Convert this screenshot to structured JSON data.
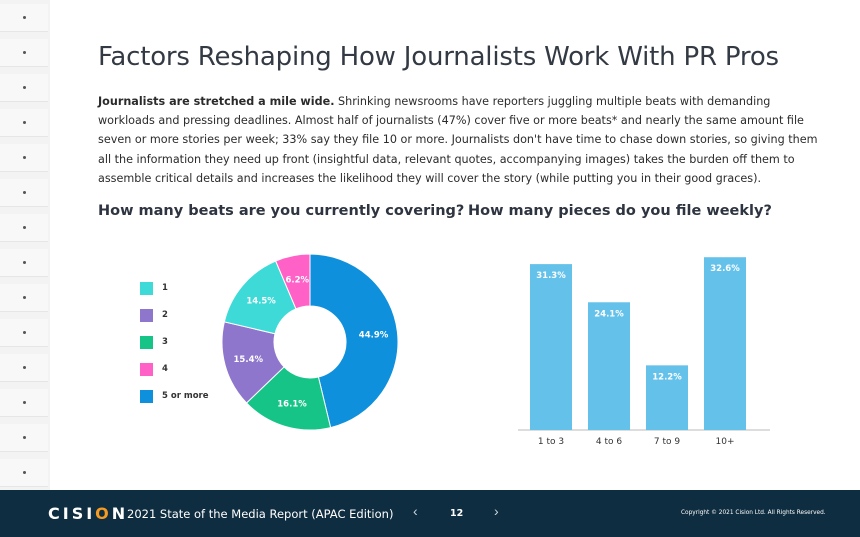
{
  "page": {
    "title": "Factors Reshaping How Journalists Work With PR Pros",
    "lead_bold": "Journalists are stretched a mile wide.",
    "lead_text": " Shrinking newsrooms have reporters juggling multiple beats with demanding workloads and pressing deadlines. Almost half of journalists (47%) cover five or more beats* and nearly the same amount file seven or more stories per week; 33% say they file 10 or more. Journalists don't have time to chase down stories, so giving them all the information they need up front (insightful data, relevant quotes, accompanying images) takes the burden off them to assemble critical details and increases the likelihood they will cover the story (while putting you in their good graces)."
  },
  "chart_data": [
    {
      "type": "pie",
      "title": "How many beats are you currently covering?",
      "categories": [
        "1",
        "2",
        "3",
        "4",
        "5 or more"
      ],
      "values": [
        14.5,
        15.4,
        16.1,
        6.2,
        44.9
      ],
      "labels": [
        "14.5%",
        "15.4%",
        "16.1%",
        "6.2%",
        "44.9%"
      ],
      "colors": [
        "#3ddad7",
        "#8e76cc",
        "#17c488",
        "#ff61c7",
        "#0f90dc"
      ],
      "donut": true,
      "legend": "left"
    },
    {
      "type": "bar",
      "title": "How many pieces do you file weekly?",
      "categories": [
        "1 to 3",
        "4 to 6",
        "7 to 9",
        "10+"
      ],
      "values": [
        31.3,
        24.1,
        12.2,
        32.6
      ],
      "labels": [
        "31.3%",
        "24.1%",
        "12.2%",
        "32.6%"
      ],
      "color": "#64c1ea",
      "grid": false
    }
  ],
  "footer": {
    "logo_main": "CISI",
    "logo_o": "O",
    "logo_end": "N",
    "report_title": "2021 State of the Media Report (APAC Edition)",
    "prev": "‹",
    "next": "›",
    "page_number": "12",
    "copyright": "Copyright © 2021 Cision Ltd. All Rights Reserved."
  }
}
